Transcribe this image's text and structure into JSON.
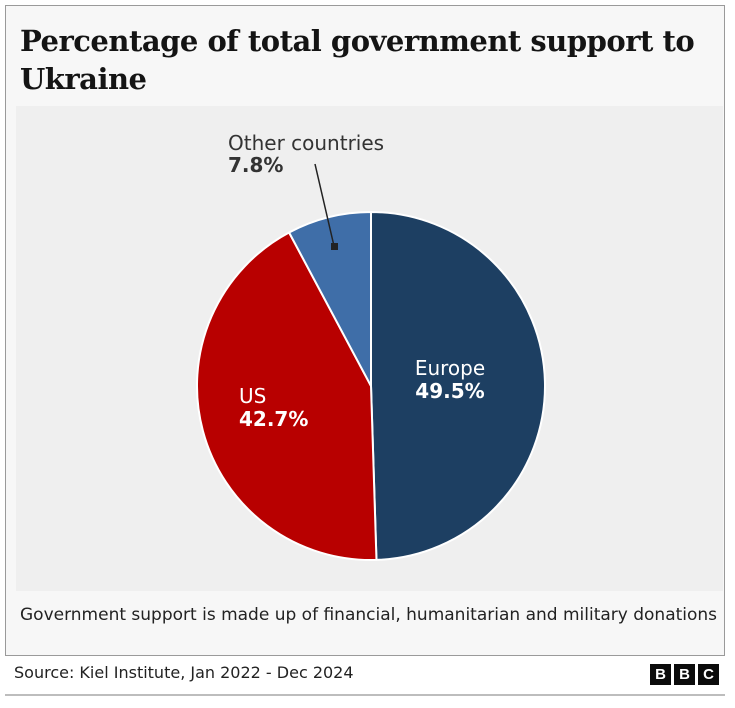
{
  "title": "Percentage of total government support to Ukraine",
  "note": "Government support is made up of financial, humanitarian and military donations",
  "source": "Source: Kiel Institute, Jan 2022 - Dec 2024",
  "logo": [
    "B",
    "B",
    "C"
  ],
  "chart_data": {
    "type": "pie",
    "title": "Percentage of total government support to Ukraine",
    "unit": "%",
    "start_angle": "12 o'clock, clockwise",
    "slices": [
      {
        "name": "Europe",
        "value": 49.5,
        "label": "49.5%",
        "color": "#1d3f62",
        "text_color": "#ffffff"
      },
      {
        "name": "US",
        "value": 42.7,
        "label": "42.7%",
        "color": "#b80000",
        "text_color": "#ffffff"
      },
      {
        "name": "Other countries",
        "value": 7.8,
        "label": "7.8%",
        "color": "#3f6ea8",
        "text_color": "#222222"
      }
    ]
  }
}
